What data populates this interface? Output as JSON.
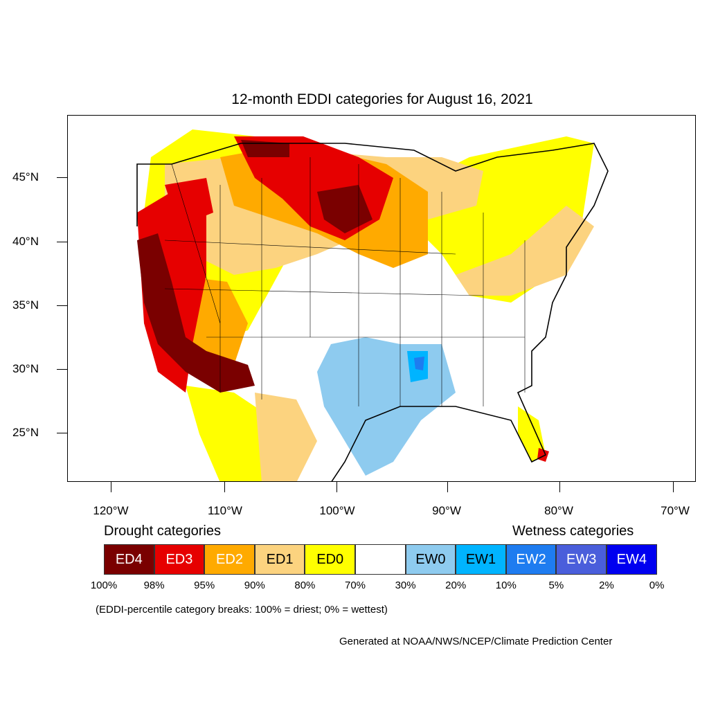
{
  "title": "12-month EDDI categories for August 16, 2021",
  "axes": {
    "lat_labels": [
      "45°N",
      "40°N",
      "35°N",
      "30°N",
      "25°N"
    ],
    "lon_labels": [
      "120°W",
      "110°W",
      "100°W",
      "90°W",
      "80°W",
      "70°W"
    ]
  },
  "legend": {
    "drought_title": "Drought categories",
    "wetness_title": "Wetness categories",
    "categories": [
      {
        "label": "ED4",
        "color": "#7a0000",
        "text_color": "#ffffff"
      },
      {
        "label": "ED3",
        "color": "#e60000",
        "text_color": "#ffffff"
      },
      {
        "label": "ED2",
        "color": "#ffaa00",
        "text_color": "#ffffff"
      },
      {
        "label": "ED1",
        "color": "#fcd37f",
        "text_color": "#000000"
      },
      {
        "label": "ED0",
        "color": "#ffff00",
        "text_color": "#000000"
      },
      {
        "label": "",
        "color": "#ffffff",
        "text_color": "#000000"
      },
      {
        "label": "EW0",
        "color": "#8ecbef",
        "text_color": "#000000"
      },
      {
        "label": "EW1",
        "color": "#00b4ff",
        "text_color": "#000000"
      },
      {
        "label": "EW2",
        "color": "#1e7cf0",
        "text_color": "#ffffff"
      },
      {
        "label": "EW3",
        "color": "#4a5edb",
        "text_color": "#ffffff"
      },
      {
        "label": "EW4",
        "color": "#0000f0",
        "text_color": "#ffffff"
      }
    ],
    "breaks": [
      "100%",
      "98%",
      "95%",
      "90%",
      "80%",
      "70%",
      "30%",
      "20%",
      "10%",
      "5%",
      "2%",
      "0%"
    ]
  },
  "note": "(EDDI-percentile category breaks: 100% = driest; 0% = wettest)",
  "credit": "Generated at NOAA/NWS/NCEP/Climate Prediction Center"
}
